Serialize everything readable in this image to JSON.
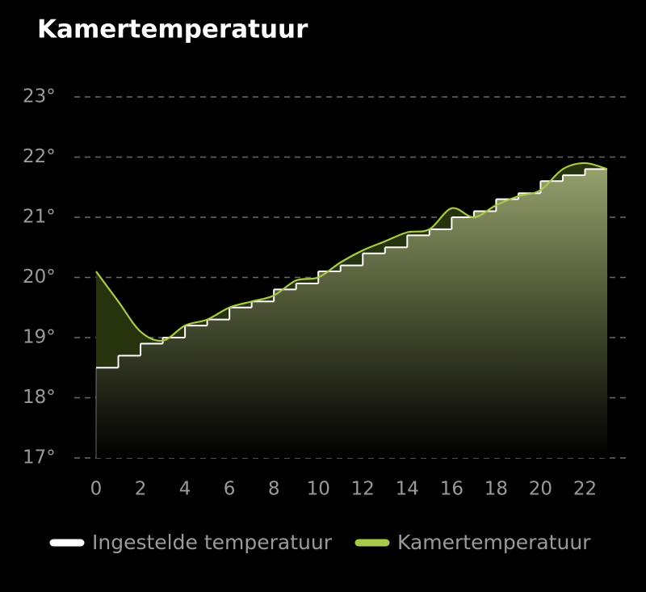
{
  "chart_data": {
    "type": "line",
    "title": "Kamertemperatuur",
    "xlim": [
      0,
      23
    ],
    "xticks": [
      0,
      2,
      4,
      6,
      8,
      10,
      12,
      14,
      16,
      18,
      20,
      22
    ],
    "ylim": [
      17,
      23
    ],
    "yticks": [
      {
        "value": 17,
        "label": "17°"
      },
      {
        "value": 18,
        "label": "18°"
      },
      {
        "value": 19,
        "label": "19°"
      },
      {
        "value": 20,
        "label": "20°"
      },
      {
        "value": 21,
        "label": "21°"
      },
      {
        "value": 22,
        "label": "22°"
      },
      {
        "value": 23,
        "label": "23°"
      }
    ],
    "grid": true,
    "series": [
      {
        "name": "Ingestelde temperatuur",
        "color": "#ffffff",
        "step": true,
        "x": [
          0,
          1,
          2,
          3,
          4,
          5,
          6,
          7,
          8,
          9,
          10,
          11,
          12,
          13,
          14,
          15,
          16,
          17,
          18,
          19,
          20,
          21,
          22
        ],
        "values": [
          18.5,
          18.7,
          18.9,
          19.0,
          19.2,
          19.3,
          19.5,
          19.6,
          19.8,
          19.9,
          20.1,
          20.2,
          20.4,
          20.5,
          20.7,
          20.8,
          21.0,
          21.1,
          21.3,
          21.4,
          21.6,
          21.7,
          21.8
        ]
      },
      {
        "name": "Kamertemperatuur",
        "color": "#a9c94c",
        "step": false,
        "x": [
          0,
          1,
          2,
          3,
          4,
          5,
          6,
          7,
          8,
          9,
          10,
          11,
          12,
          13,
          14,
          15,
          16,
          17,
          18,
          19,
          20,
          21,
          22,
          23
        ],
        "values": [
          20.1,
          19.6,
          19.1,
          18.95,
          19.2,
          19.3,
          19.5,
          19.6,
          19.7,
          19.95,
          20.0,
          20.25,
          20.45,
          20.6,
          20.75,
          20.8,
          21.15,
          21.0,
          21.2,
          21.35,
          21.45,
          21.8,
          21.9,
          21.8
        ]
      }
    ]
  }
}
